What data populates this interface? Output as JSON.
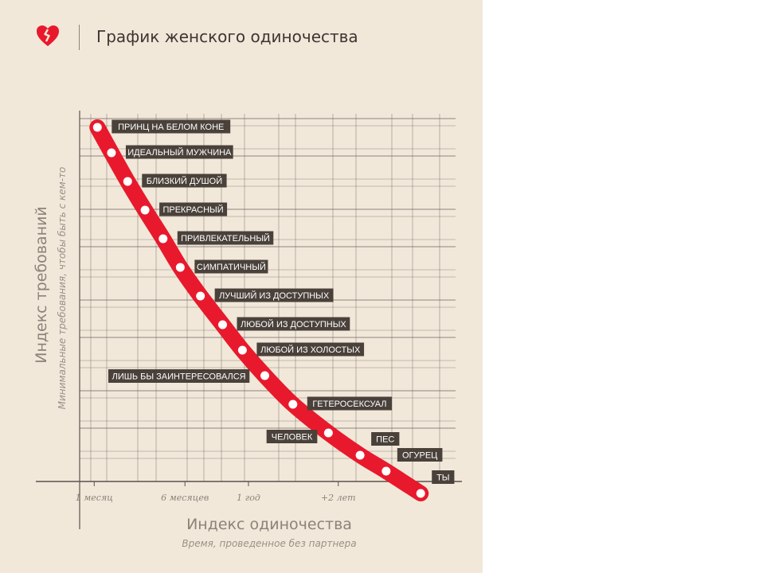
{
  "header": {
    "title": "График женского одиночества",
    "logo_icon": "broken-heart-icon"
  },
  "colors": {
    "background": "#f2e8da",
    "curve": "#e8192c",
    "label_box": "#4a413b",
    "grid": "#6e655e"
  },
  "chart_data": {
    "type": "line",
    "title": "График женского одиночества",
    "ylabel": "Индекс требований",
    "ylabel_sub": "Минимальные требования, чтобы быть с кем-то",
    "xlabel": "Индекс одиночества",
    "xlabel_sub": "Время, проведенное без партнера",
    "x_ticks": [
      "1 месяц",
      "6 месяцев",
      "1 год",
      "+2 лет"
    ],
    "x_tick_months": [
      1,
      6,
      12,
      24
    ],
    "points": [
      {
        "label": "ПРИНЦ НА БЕЛОМ КОНЕ",
        "x": 1.0,
        "y": 100
      },
      {
        "label": "ИДЕАЛЬНЫЙ МУЖЧИНА",
        "x": 1.5,
        "y": 92
      },
      {
        "label": "БЛИЗКИЙ ДУШОЙ",
        "x": 2.2,
        "y": 83
      },
      {
        "label": "ПРЕКРАСНЫЙ",
        "x": 3.1,
        "y": 74
      },
      {
        "label": "ПРИВЛЕКАТЕЛЬНЫЙ",
        "x": 4.2,
        "y": 65
      },
      {
        "label": "СИМПАТИЧНЫЙ",
        "x": 5.4,
        "y": 56
      },
      {
        "label": "ЛУЧШИЙ ИЗ ДОСТУПНЫХ",
        "x": 7.0,
        "y": 47
      },
      {
        "label": "ЛЮБОЙ ИЗ ДОСТУПНЫХ",
        "x": 9.0,
        "y": 38
      },
      {
        "label": "ЛЮБОЙ ИЗ ХОЛОСТЫХ",
        "x": 11.0,
        "y": 30
      },
      {
        "label": "ЛИШЬ БЫ ЗАИНТЕРЕСОВАЛСЯ",
        "x": 13.5,
        "y": 22
      },
      {
        "label": "ГЕТЕРОСЕКСУАЛ",
        "x": 17.0,
        "y": 13
      },
      {
        "label": "ЧЕЛОВЕК",
        "x": 22.0,
        "y": 4
      },
      {
        "label": "ПЕС",
        "x": 27.0,
        "y": -3
      },
      {
        "label": "ОГУРЕЦ",
        "x": 31.5,
        "y": -8
      },
      {
        "label": "ТЫ",
        "x": 38.0,
        "y": -15
      }
    ]
  }
}
